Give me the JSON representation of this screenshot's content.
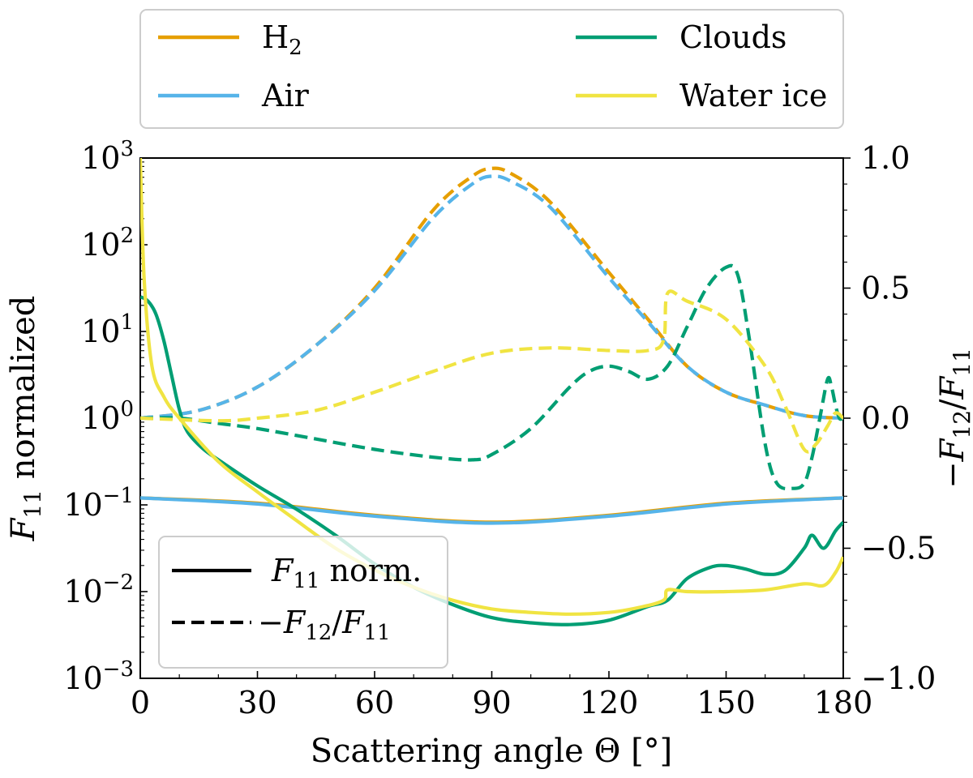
{
  "chart_data": {
    "type": "line",
    "title": "",
    "xlabel": "Scattering angle Θ [°]",
    "ylabel_left": "F11 normalized",
    "ylabel_right": "−F12/F11",
    "xlim": [
      0,
      180
    ],
    "ylim_left_log10": [
      -3,
      3
    ],
    "ylim_right": [
      -1.0,
      1.0
    ],
    "x_ticks": [
      {
        "value": 0,
        "label": "0"
      },
      {
        "value": 30,
        "label": "30"
      },
      {
        "value": 60,
        "label": "60"
      },
      {
        "value": 90,
        "label": "90"
      },
      {
        "value": 120,
        "label": "120"
      },
      {
        "value": 150,
        "label": "150"
      },
      {
        "value": 180,
        "label": "180"
      }
    ],
    "y_left_ticks": [
      {
        "exp": 3,
        "base": "10",
        "sup": "3"
      },
      {
        "exp": 2,
        "base": "10",
        "sup": "2"
      },
      {
        "exp": 1,
        "base": "10",
        "sup": "1"
      },
      {
        "exp": 0,
        "base": "10",
        "sup": "0"
      },
      {
        "exp": -1,
        "base": "10",
        "sup": "−1"
      },
      {
        "exp": -2,
        "base": "10",
        "sup": "−2"
      },
      {
        "exp": -3,
        "base": "10",
        "sup": "−3"
      }
    ],
    "y_right_ticks": [
      {
        "value": 1.0,
        "label": "1.0"
      },
      {
        "value": 0.5,
        "label": "0.5"
      },
      {
        "value": 0.0,
        "label": "0.0"
      },
      {
        "value": -0.5,
        "label": "−0.5"
      },
      {
        "value": -1.0,
        "label": "−1.0"
      }
    ],
    "series": [
      {
        "name": "H2",
        "color": "#E69F00",
        "f11_log10": [
          [
            0,
            -0.92
          ],
          [
            30,
            -0.98
          ],
          [
            60,
            -1.12
          ],
          [
            90,
            -1.2
          ],
          [
            120,
            -1.12
          ],
          [
            150,
            -0.98
          ],
          [
            180,
            -0.92
          ]
        ],
        "polarization": [
          [
            0,
            0.0
          ],
          [
            15,
            0.03
          ],
          [
            30,
            0.12
          ],
          [
            45,
            0.28
          ],
          [
            60,
            0.5
          ],
          [
            75,
            0.8
          ],
          [
            85,
            0.93
          ],
          [
            90,
            0.96
          ],
          [
            95,
            0.94
          ],
          [
            105,
            0.83
          ],
          [
            120,
            0.56
          ],
          [
            130,
            0.38
          ],
          [
            140,
            0.2
          ],
          [
            150,
            0.1
          ],
          [
            160,
            0.05
          ],
          [
            170,
            0.01
          ],
          [
            180,
            0.0
          ]
        ]
      },
      {
        "name": "Air",
        "color": "#56B4E9",
        "f11_log10": [
          [
            0,
            -0.92
          ],
          [
            30,
            -0.99
          ],
          [
            60,
            -1.13
          ],
          [
            90,
            -1.21
          ],
          [
            120,
            -1.13
          ],
          [
            150,
            -0.99
          ],
          [
            180,
            -0.92
          ]
        ],
        "polarization": [
          [
            0,
            0.0
          ],
          [
            15,
            0.03
          ],
          [
            30,
            0.12
          ],
          [
            45,
            0.28
          ],
          [
            60,
            0.49
          ],
          [
            75,
            0.77
          ],
          [
            85,
            0.9
          ],
          [
            90,
            0.93
          ],
          [
            95,
            0.91
          ],
          [
            105,
            0.81
          ],
          [
            120,
            0.54
          ],
          [
            130,
            0.37
          ],
          [
            140,
            0.2
          ],
          [
            150,
            0.1
          ],
          [
            160,
            0.05
          ],
          [
            170,
            0.01
          ],
          [
            180,
            0.0
          ]
        ]
      },
      {
        "name": "Clouds",
        "color": "#009E73",
        "f11_log10": [
          [
            0,
            1.4
          ],
          [
            2,
            1.35
          ],
          [
            4,
            1.2
          ],
          [
            6,
            0.9
          ],
          [
            8,
            0.5
          ],
          [
            10,
            0.1
          ],
          [
            12,
            -0.15
          ],
          [
            16,
            -0.35
          ],
          [
            20,
            -0.48
          ],
          [
            30,
            -0.78
          ],
          [
            40,
            -1.05
          ],
          [
            50,
            -1.35
          ],
          [
            60,
            -1.68
          ],
          [
            70,
            -1.95
          ],
          [
            80,
            -2.15
          ],
          [
            90,
            -2.3
          ],
          [
            100,
            -2.36
          ],
          [
            110,
            -2.38
          ],
          [
            120,
            -2.33
          ],
          [
            130,
            -2.17
          ],
          [
            135,
            -2.1
          ],
          [
            140,
            -1.85
          ],
          [
            146,
            -1.72
          ],
          [
            150,
            -1.7
          ],
          [
            155,
            -1.74
          ],
          [
            160,
            -1.8
          ],
          [
            165,
            -1.76
          ],
          [
            170,
            -1.5
          ],
          [
            172,
            -1.35
          ],
          [
            175,
            -1.5
          ],
          [
            178,
            -1.3
          ],
          [
            180,
            -1.2
          ]
        ],
        "polarization": [
          [
            0,
            0.0
          ],
          [
            10,
            0.0
          ],
          [
            20,
            -0.02
          ],
          [
            30,
            -0.04
          ],
          [
            45,
            -0.08
          ],
          [
            60,
            -0.12
          ],
          [
            75,
            -0.15
          ],
          [
            85,
            -0.16
          ],
          [
            90,
            -0.14
          ],
          [
            100,
            -0.04
          ],
          [
            110,
            0.12
          ],
          [
            115,
            0.18
          ],
          [
            120,
            0.2
          ],
          [
            125,
            0.18
          ],
          [
            130,
            0.15
          ],
          [
            135,
            0.2
          ],
          [
            140,
            0.35
          ],
          [
            145,
            0.5
          ],
          [
            150,
            0.58
          ],
          [
            153,
            0.55
          ],
          [
            156,
            0.3
          ],
          [
            160,
            -0.1
          ],
          [
            163,
            -0.25
          ],
          [
            167,
            -0.27
          ],
          [
            170,
            -0.25
          ],
          [
            172,
            -0.15
          ],
          [
            174,
            0.0
          ],
          [
            176,
            0.15
          ],
          [
            177,
            0.12
          ],
          [
            178,
            0.05
          ],
          [
            179,
            0.0
          ],
          [
            180,
            0.0
          ]
        ]
      },
      {
        "name": "Water ice",
        "color": "#F0E442",
        "f11_log10": [
          [
            0,
            3.0
          ],
          [
            1,
            1.6
          ],
          [
            3,
            0.6
          ],
          [
            6,
            0.25
          ],
          [
            10,
            0.0
          ],
          [
            20,
            -0.5
          ],
          [
            30,
            -0.85
          ],
          [
            40,
            -1.18
          ],
          [
            50,
            -1.5
          ],
          [
            60,
            -1.75
          ],
          [
            70,
            -1.95
          ],
          [
            80,
            -2.1
          ],
          [
            90,
            -2.2
          ],
          [
            100,
            -2.24
          ],
          [
            110,
            -2.26
          ],
          [
            120,
            -2.24
          ],
          [
            128,
            -2.18
          ],
          [
            134,
            -2.1
          ],
          [
            135,
            -1.98
          ],
          [
            140,
            -2.0
          ],
          [
            150,
            -2.0
          ],
          [
            160,
            -1.98
          ],
          [
            170,
            -1.91
          ],
          [
            175,
            -1.93
          ],
          [
            178,
            -1.78
          ],
          [
            180,
            -1.6
          ]
        ],
        "polarization": [
          [
            0,
            0.0
          ],
          [
            20,
            -0.01
          ],
          [
            30,
            0.0
          ],
          [
            45,
            0.03
          ],
          [
            60,
            0.1
          ],
          [
            75,
            0.18
          ],
          [
            90,
            0.25
          ],
          [
            105,
            0.27
          ],
          [
            120,
            0.26
          ],
          [
            130,
            0.26
          ],
          [
            134,
            0.3
          ],
          [
            135,
            0.48
          ],
          [
            140,
            0.45
          ],
          [
            150,
            0.38
          ],
          [
            160,
            0.2
          ],
          [
            165,
            0.05
          ],
          [
            170,
            -0.12
          ],
          [
            173,
            -0.1
          ],
          [
            176,
            -0.03
          ],
          [
            178,
            0.02
          ],
          [
            180,
            0.0
          ]
        ]
      }
    ],
    "legend_top": {
      "position": "top, above axes",
      "entries": [
        {
          "label": "H",
          "sub": "2",
          "color": "#E69F00"
        },
        {
          "label": "Air",
          "sub": "",
          "color": "#56B4E9"
        },
        {
          "label": "Clouds",
          "sub": "",
          "color": "#009E73"
        },
        {
          "label": "Water ice",
          "sub": "",
          "color": "#F0E442"
        }
      ]
    },
    "legend_style": {
      "position": "lower-left",
      "entries": [
        {
          "label": "F11 norm.",
          "style": "solid"
        },
        {
          "label": "−F12/F11",
          "style": "dashed"
        }
      ]
    }
  }
}
